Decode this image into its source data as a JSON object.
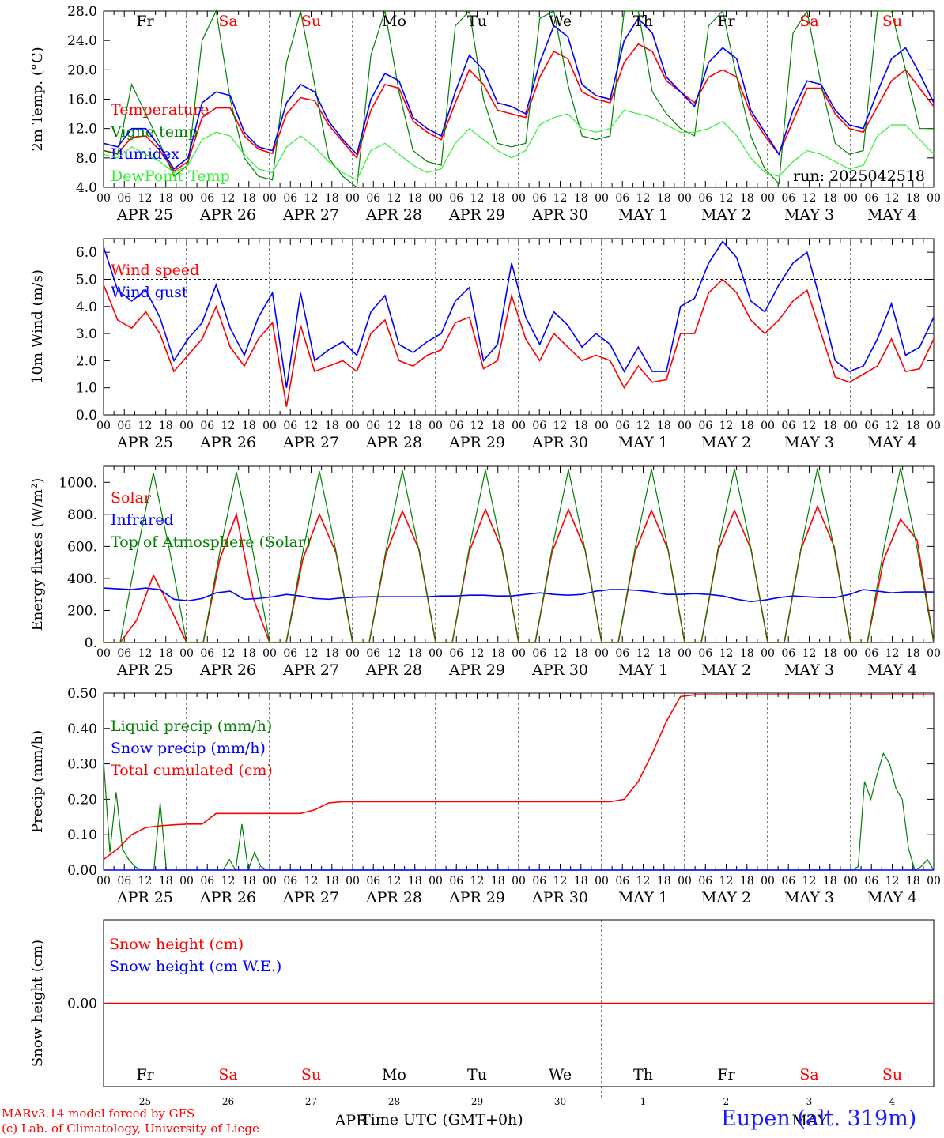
{
  "run_label": "run: 2025042518",
  "day_names": [
    "Fr",
    "Sa",
    "Su",
    "Mo",
    "Tu",
    "We",
    "Th",
    "Fr",
    "Sa",
    "Su"
  ],
  "weekend_days": [
    1,
    2,
    8,
    9
  ],
  "hour_labels": [
    "00",
    "06",
    "12",
    "18"
  ],
  "date_labels": [
    {
      "month": "APR",
      "day": "25"
    },
    {
      "month": "APR",
      "day": "26"
    },
    {
      "month": "APR",
      "day": "27"
    },
    {
      "month": "APR",
      "day": "28"
    },
    {
      "month": "APR",
      "day": "29"
    },
    {
      "month": "APR",
      "day": "30"
    },
    {
      "month": "MAY",
      "day": "1"
    },
    {
      "month": "MAY",
      "day": "2"
    },
    {
      "month": "MAY",
      "day": "3"
    },
    {
      "month": "MAY",
      "day": "4"
    }
  ],
  "bottom_day_numbers": [
    "25",
    "26",
    "27",
    "28",
    "29",
    "30",
    "1",
    "2",
    "3",
    "4"
  ],
  "bottom_month_labels": [
    "APR",
    "MAY"
  ],
  "x_title": "Time UTC (GMT+0h)",
  "credit_line1": "MARv3.14 model forced by GFS",
  "credit_line2": "(c) Lab. of Climatology, University of Liege",
  "station_label": "Eupen (alt. 319m)",
  "colors": {
    "red": "#ff0000",
    "green": "#008000",
    "blue": "#0000ff",
    "lightgreen": "#33ee33"
  },
  "chart_data": [
    {
      "type": "line",
      "ylabel": "2m Temp. (°C)",
      "ylim": [
        4,
        28
      ],
      "yticks": [
        "4.0",
        "8.0",
        "12.0",
        "16.0",
        "20.0",
        "24.0",
        "28.0"
      ],
      "series": [
        {
          "name": "Temperature",
          "color": "red",
          "values": [
            9,
            8.6,
            10.8,
            11,
            9,
            6.2,
            7.5,
            13.5,
            14.8,
            14.8,
            11,
            9.2,
            8.6,
            14,
            16.2,
            15.8,
            12.5,
            10.2,
            8,
            14.5,
            18,
            17.5,
            13,
            11.5,
            10.5,
            15.5,
            20,
            18,
            14.5,
            14,
            13.5,
            19,
            22.5,
            21.5,
            17,
            16,
            15.5,
            21,
            23.5,
            22.5,
            18.5,
            17,
            15.5,
            19,
            20,
            19,
            14,
            11,
            8.5,
            13,
            17.5,
            17.5,
            14,
            12,
            11.5,
            15,
            18.5,
            20,
            17.5,
            15
          ]
        },
        {
          "name": "Vigne temp",
          "color": "green",
          "values": [
            9,
            8.5,
            18,
            14,
            10,
            5.5,
            7,
            24,
            28,
            16,
            8,
            5.5,
            5,
            21,
            28,
            18,
            8,
            5.5,
            4,
            22,
            28,
            17,
            9,
            7.5,
            7,
            26,
            28,
            16,
            10,
            9.5,
            10,
            27,
            28,
            18,
            11,
            10.5,
            11,
            28,
            28,
            17,
            14,
            12,
            11,
            26,
            28,
            19,
            11,
            6.5,
            4.5,
            25,
            28,
            18,
            10,
            8.5,
            9,
            28,
            28,
            20,
            12,
            12
          ]
        },
        {
          "name": "Humidex",
          "color": "blue",
          "values": [
            10,
            9.5,
            12,
            12,
            9.5,
            6.5,
            8,
            15.5,
            17,
            16.5,
            11.5,
            9.5,
            9,
            15.5,
            18,
            17,
            13,
            10.5,
            8.5,
            16,
            19.5,
            18.5,
            13.5,
            12,
            11,
            17,
            22,
            20,
            15.5,
            15,
            14,
            21,
            26,
            24.5,
            18,
            16.5,
            16,
            24,
            27,
            25,
            19,
            17,
            15,
            21,
            23,
            21.5,
            14.5,
            11.5,
            8.5,
            14.5,
            18.5,
            18,
            14.5,
            12.5,
            12,
            17,
            21.5,
            23,
            19.5,
            15.5
          ]
        },
        {
          "name": "DewPoint Temp",
          "color": "lightgreen",
          "values": [
            8.5,
            8,
            9.5,
            8.5,
            7.5,
            6,
            7,
            10.5,
            11.5,
            11,
            8.5,
            6.5,
            6,
            9.5,
            11,
            9.5,
            7.5,
            6,
            5,
            9,
            10,
            8.5,
            7,
            6,
            6.5,
            10,
            12,
            10.5,
            9,
            8,
            9,
            12.5,
            13.5,
            14,
            12,
            11.5,
            12,
            14.5,
            14,
            13.5,
            12.5,
            11.5,
            11.5,
            12,
            13,
            11,
            8,
            6,
            5.5,
            7.5,
            9,
            8.5,
            7.5,
            6.5,
            7,
            11,
            12.5,
            12.5,
            10.5,
            8.5
          ]
        }
      ]
    },
    {
      "type": "line",
      "ylabel": "10m Wind (m/s)",
      "ylim": [
        0,
        6.5
      ],
      "yticks": [
        "0.0",
        "1.0",
        "2.0",
        "3.0",
        "4.0",
        "5.0",
        "6.0"
      ],
      "reference_line": 5,
      "series": [
        {
          "name": "Wind speed",
          "color": "red",
          "values": [
            4.8,
            3.5,
            3.2,
            3.8,
            3,
            1.6,
            2.2,
            2.8,
            4,
            2.5,
            1.8,
            2.8,
            3.4,
            0.3,
            3.3,
            1.6,
            1.8,
            2,
            1.6,
            3,
            3.5,
            2,
            1.8,
            2.2,
            2.4,
            3.4,
            3.6,
            1.7,
            2,
            4.4,
            2.8,
            2,
            3,
            2.5,
            2,
            2.2,
            2,
            1,
            1.8,
            1.2,
            1.3,
            3,
            3,
            4.5,
            5,
            4.5,
            3.5,
            3,
            3.5,
            4.2,
            4.6,
            3,
            1.4,
            1.2,
            1.5,
            1.8,
            2.8,
            1.6,
            1.7,
            2.8
          ]
        },
        {
          "name": "Wind gust",
          "color": "blue",
          "values": [
            6.2,
            4.6,
            4.2,
            4.6,
            3.6,
            2,
            2.8,
            3.4,
            4.8,
            3.2,
            2.2,
            3.6,
            4.5,
            1,
            4.5,
            2,
            2.4,
            2.7,
            2.2,
            3.8,
            4.4,
            2.6,
            2.3,
            2.7,
            3,
            4.2,
            4.7,
            2,
            2.6,
            5.6,
            3.6,
            2.6,
            3.8,
            3.3,
            2.5,
            3,
            2.6,
            1.6,
            2.5,
            1.6,
            1.6,
            4,
            4.3,
            5.6,
            6.4,
            5.8,
            4.2,
            3.8,
            4.8,
            5.6,
            6,
            4.1,
            2,
            1.6,
            1.8,
            2.8,
            4.1,
            2.2,
            2.5,
            3.6
          ]
        }
      ]
    },
    {
      "type": "line",
      "ylabel": "Energy fluxes (W/m²)",
      "ylim": [
        0,
        1100
      ],
      "yticks": [
        "0.",
        "200.",
        "400.",
        "600.",
        "800.",
        "1000."
      ],
      "series": [
        {
          "name": "Solar",
          "color": "red",
          "values": [
            0,
            0,
            140,
            420,
            220,
            0,
            0,
            520,
            800,
            280,
            0,
            0,
            520,
            800,
            560,
            0,
            0,
            550,
            820,
            580,
            0,
            0,
            560,
            830,
            580,
            0,
            0,
            560,
            830,
            580,
            0,
            0,
            560,
            825,
            580,
            0,
            0,
            570,
            825,
            580,
            0,
            0,
            580,
            850,
            600,
            0,
            0,
            520,
            770,
            640,
            0
          ]
        },
        {
          "name": "Infrared",
          "color": "blue",
          "values": [
            340,
            335,
            330,
            340,
            330,
            270,
            260,
            275,
            310,
            320,
            270,
            275,
            285,
            300,
            290,
            275,
            270,
            278,
            283,
            285,
            285,
            285,
            285,
            285,
            290,
            290,
            295,
            295,
            290,
            290,
            300,
            310,
            300,
            295,
            300,
            320,
            330,
            330,
            325,
            315,
            300,
            300,
            305,
            300,
            290,
            270,
            255,
            265,
            280,
            290,
            285,
            280,
            280,
            300,
            330,
            320,
            310,
            315,
            315,
            315
          ]
        },
        {
          "name": "Top of Atmosphere (Solar)",
          "color": "green",
          "values": [
            0,
            0,
            560,
            1060,
            560,
            0,
            0,
            565,
            1065,
            565,
            0,
            0,
            565,
            1070,
            570,
            0,
            0,
            570,
            1075,
            570,
            0,
            0,
            575,
            1078,
            575,
            0,
            0,
            578,
            1080,
            578,
            0,
            0,
            580,
            1082,
            580,
            0,
            0,
            582,
            1085,
            582,
            0,
            0,
            585,
            1088,
            585,
            0,
            0,
            588,
            1090,
            588,
            0
          ]
        }
      ]
    },
    {
      "type": "line",
      "ylabel": "Precip (mm/h)",
      "ylim": [
        0,
        0.5
      ],
      "yticks": [
        "0.00",
        "0.10",
        "0.20",
        "0.30",
        "0.40",
        "0.50"
      ],
      "series": [
        {
          "name": "Liquid precip (mm/h)",
          "color": "green",
          "values": [
            0.31,
            0.05,
            0.22,
            0.06,
            0.03,
            0.01,
            0,
            0,
            0,
            0.19,
            0,
            0,
            0,
            0,
            0,
            0,
            0,
            0,
            0,
            0,
            0.03,
            0,
            0.13,
            0,
            0.05,
            0.01,
            0,
            0,
            0,
            0,
            0,
            0,
            0,
            0,
            0,
            0,
            0,
            0,
            0,
            0,
            0,
            0,
            0,
            0,
            0,
            0,
            0,
            0,
            0,
            0,
            0,
            0,
            0,
            0,
            0,
            0,
            0,
            0,
            0,
            0,
            0,
            0,
            0,
            0,
            0,
            0,
            0,
            0,
            0,
            0,
            0,
            0,
            0,
            0,
            0,
            0,
            0,
            0,
            0,
            0,
            0,
            0,
            0,
            0,
            0,
            0,
            0,
            0,
            0,
            0,
            0,
            0,
            0,
            0,
            0,
            0,
            0,
            0,
            0,
            0,
            0,
            0,
            0,
            0,
            0,
            0,
            0,
            0,
            0,
            0,
            0,
            0,
            0,
            0,
            0,
            0,
            0,
            0,
            0,
            0,
            0.01,
            0.25,
            0.2,
            0.27,
            0.33,
            0.3,
            0.23,
            0.2,
            0.06,
            0,
            0.01,
            0.03,
            0
          ]
        },
        {
          "name": "Snow precip (mm/h)",
          "color": "blue",
          "values": [
            0,
            0
          ]
        },
        {
          "name": "Total cumulated (cm)",
          "color": "red",
          "values": [
            0.03,
            0.06,
            0.1,
            0.12,
            0.125,
            0.128,
            0.13,
            0.13,
            0.16,
            0.16,
            0.16,
            0.16,
            0.16,
            0.16,
            0.16,
            0.17,
            0.19,
            0.193,
            0.193,
            0.193,
            0.193,
            0.193,
            0.193,
            0.193,
            0.193,
            0.193,
            0.193,
            0.193,
            0.193,
            0.193,
            0.193,
            0.193,
            0.193,
            0.193,
            0.193,
            0.193,
            0.193,
            0.2,
            0.25,
            0.33,
            0.42,
            0.49,
            0.495,
            0.495,
            0.495,
            0.495,
            0.495,
            0.495,
            0.495,
            0.495,
            0.495,
            0.495,
            0.495,
            0.495,
            0.495,
            0.495,
            0.495,
            0.495,
            0.495,
            0.495
          ]
        }
      ]
    },
    {
      "type": "line",
      "ylabel": "Snow height (cm)",
      "ylim": [
        -1,
        1
      ],
      "yticks": [
        "0.00"
      ],
      "series": [
        {
          "name": "Snow height (cm)",
          "color": "red",
          "values": [
            0,
            0
          ]
        },
        {
          "name": "Snow height (cm W.E.)",
          "color": "blue",
          "values": []
        }
      ]
    }
  ]
}
